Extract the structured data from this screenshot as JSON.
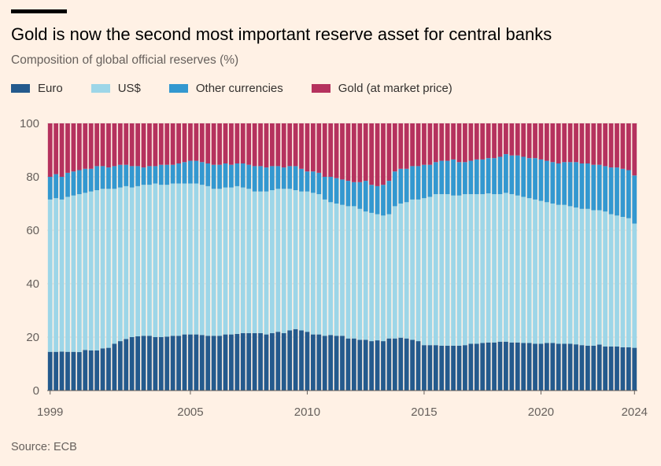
{
  "chart_data": {
    "type": "bar",
    "stacked": true,
    "title": "Gold is now the second most important reserve asset for central banks",
    "subtitle": "Composition of global official reserves (%)",
    "source": "Source: ECB",
    "xlabel": "",
    "ylabel": "",
    "ylim": [
      0,
      100
    ],
    "yticks": [
      "0",
      "20",
      "40",
      "60",
      "80",
      "100"
    ],
    "xticks": [
      "1999",
      "2005",
      "2010",
      "2015",
      "2020",
      "2024"
    ],
    "x_start": 1999,
    "x_step_years": 0.25,
    "legend_position": "top-left",
    "series": [
      {
        "name": "Euro",
        "color": "#245A8D",
        "values": [
          14.5,
          14.5,
          14.6,
          14.5,
          14.5,
          14.4,
          15.2,
          15.0,
          15.0,
          15.8,
          16.0,
          17.5,
          18.5,
          19.3,
          20.0,
          20.3,
          20.5,
          20.5,
          20.0,
          20.0,
          20.2,
          20.5,
          20.5,
          21.0,
          21.0,
          21.0,
          20.8,
          20.5,
          20.5,
          20.5,
          21.0,
          21.0,
          21.2,
          21.5,
          21.5,
          21.5,
          21.5,
          21.0,
          21.5,
          22.0,
          21.5,
          22.5,
          23.0,
          22.5,
          22.0,
          21.0,
          21.0,
          20.5,
          20.8,
          20.5,
          20.5,
          19.5,
          19.5,
          19.0,
          19.0,
          18.5,
          18.8,
          18.5,
          19.5,
          19.5,
          19.8,
          19.5,
          19.0,
          18.5,
          17.0,
          17.0,
          17.0,
          16.8,
          16.8,
          16.8,
          16.8,
          17.0,
          17.5,
          17.5,
          17.8,
          18.0,
          18.0,
          18.3,
          18.3,
          18.0,
          18.0,
          17.8,
          17.8,
          17.5,
          17.5,
          17.8,
          17.8,
          17.5,
          17.5,
          17.5,
          17.3,
          17.0,
          16.8,
          16.8,
          17.2,
          16.5,
          16.5,
          16.5,
          16.2,
          16.2,
          16.0
        ]
      },
      {
        "name": "US$",
        "color": "#9DD6E8",
        "values": [
          57.0,
          57.5,
          56.9,
          58.0,
          58.5,
          59.1,
          58.8,
          59.5,
          60.0,
          59.7,
          59.5,
          58.0,
          57.5,
          57.2,
          56.0,
          56.2,
          56.5,
          56.5,
          57.5,
          57.0,
          56.8,
          57.0,
          57.0,
          56.5,
          56.5,
          56.5,
          56.2,
          56.0,
          55.0,
          55.0,
          55.0,
          55.0,
          55.3,
          54.5,
          54.0,
          53.0,
          53.0,
          53.5,
          53.5,
          53.5,
          54.0,
          53.0,
          52.0,
          52.0,
          52.5,
          53.0,
          52.5,
          51.0,
          49.7,
          49.5,
          49.0,
          49.5,
          49.5,
          49.0,
          48.0,
          48.0,
          47.2,
          47.0,
          46.5,
          49.5,
          50.2,
          51.0,
          52.5,
          53.0,
          55.0,
          55.5,
          56.5,
          56.7,
          56.7,
          56.2,
          56.2,
          56.5,
          56.0,
          56.0,
          55.7,
          55.8,
          55.5,
          55.2,
          55.7,
          55.5,
          55.0,
          54.7,
          54.2,
          54.0,
          53.5,
          52.7,
          52.2,
          52.0,
          52.0,
          51.5,
          51.2,
          51.0,
          51.2,
          50.7,
          50.3,
          50.5,
          49.5,
          49.0,
          48.8,
          48.3,
          46.5
        ]
      },
      {
        "name": "Other currencies",
        "color": "#3398D0",
        "values": [
          8.5,
          9.0,
          8.5,
          9.0,
          9.0,
          9.0,
          9.0,
          8.5,
          9.0,
          8.5,
          8.0,
          8.5,
          8.5,
          8.0,
          8.0,
          7.5,
          6.5,
          7.0,
          6.5,
          7.5,
          7.5,
          7.0,
          7.5,
          8.0,
          8.5,
          8.5,
          8.5,
          8.5,
          9.0,
          9.0,
          9.0,
          8.5,
          8.5,
          9.0,
          9.0,
          9.5,
          9.5,
          9.0,
          9.0,
          8.5,
          8.0,
          8.5,
          9.0,
          8.5,
          7.5,
          8.0,
          8.0,
          8.5,
          9.5,
          9.5,
          9.5,
          9.5,
          9.0,
          10.0,
          11.5,
          10.5,
          10.5,
          11.5,
          12.5,
          13.0,
          13.0,
          12.5,
          12.5,
          12.5,
          12.5,
          12.0,
          12.0,
          12.5,
          12.5,
          13.5,
          12.5,
          12.0,
          12.5,
          13.0,
          13.0,
          13.2,
          13.5,
          14.0,
          14.5,
          14.5,
          15.0,
          15.0,
          15.0,
          15.5,
          15.5,
          15.5,
          15.5,
          15.5,
          16.0,
          16.5,
          17.0,
          17.0,
          17.0,
          17.0,
          17.0,
          17.0,
          17.5,
          18.0,
          18.0,
          18.0,
          18.0
        ]
      },
      {
        "name": "Gold (at market price)",
        "color": "#B5325E",
        "values": [
          20.0,
          19.0,
          20.0,
          18.5,
          18.0,
          17.5,
          17.0,
          17.0,
          16.0,
          16.0,
          16.5,
          16.0,
          15.5,
          15.5,
          16.0,
          16.0,
          16.5,
          16.0,
          16.0,
          15.5,
          15.5,
          15.5,
          15.0,
          14.5,
          14.0,
          14.0,
          14.5,
          15.0,
          15.5,
          15.5,
          15.0,
          15.5,
          15.0,
          15.0,
          15.5,
          16.0,
          16.0,
          16.5,
          16.0,
          16.0,
          16.5,
          16.0,
          16.0,
          17.0,
          18.0,
          18.0,
          18.5,
          20.0,
          20.0,
          20.5,
          21.0,
          21.5,
          22.0,
          22.0,
          21.5,
          23.0,
          23.5,
          23.0,
          21.5,
          18.0,
          17.0,
          17.0,
          16.0,
          16.0,
          15.5,
          15.5,
          14.5,
          14.0,
          14.0,
          13.5,
          14.5,
          14.5,
          14.0,
          13.5,
          13.5,
          13.0,
          13.0,
          12.5,
          11.5,
          12.0,
          12.0,
          12.5,
          13.0,
          13.0,
          13.5,
          14.0,
          14.5,
          15.0,
          14.5,
          14.5,
          14.5,
          15.0,
          15.0,
          15.5,
          15.5,
          16.0,
          16.5,
          16.5,
          17.0,
          17.5,
          19.5
        ]
      }
    ]
  }
}
